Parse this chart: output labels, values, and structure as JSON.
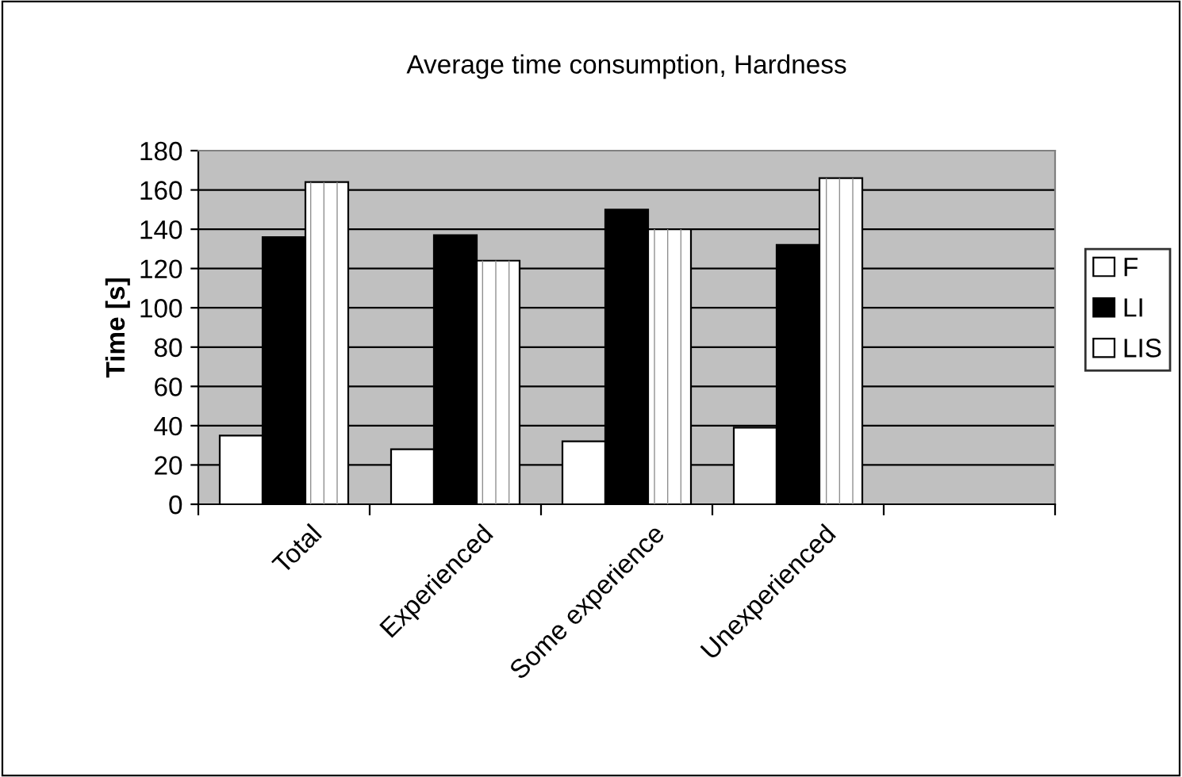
{
  "chart_data": {
    "type": "bar",
    "title": "Average time consumption, Hardness",
    "ylabel": "Time [s]",
    "categories": [
      "Total",
      "Experienced",
      "Some experience",
      "Unexperienced",
      null
    ],
    "series": [
      {
        "name": "F",
        "color": "#ffffff",
        "values": [
          35,
          28,
          32,
          39,
          null
        ]
      },
      {
        "name": "LI",
        "color": "#000000",
        "values": [
          136,
          137,
          150,
          132,
          null
        ]
      },
      {
        "name": "LIS",
        "color": "#ffffff",
        "values": [
          164,
          124,
          140,
          166,
          null
        ]
      }
    ],
    "ylim": [
      0,
      180
    ],
    "yticks": [
      0,
      20,
      40,
      60,
      80,
      100,
      120,
      140,
      160,
      180
    ],
    "grid": "y",
    "legend": "right"
  }
}
